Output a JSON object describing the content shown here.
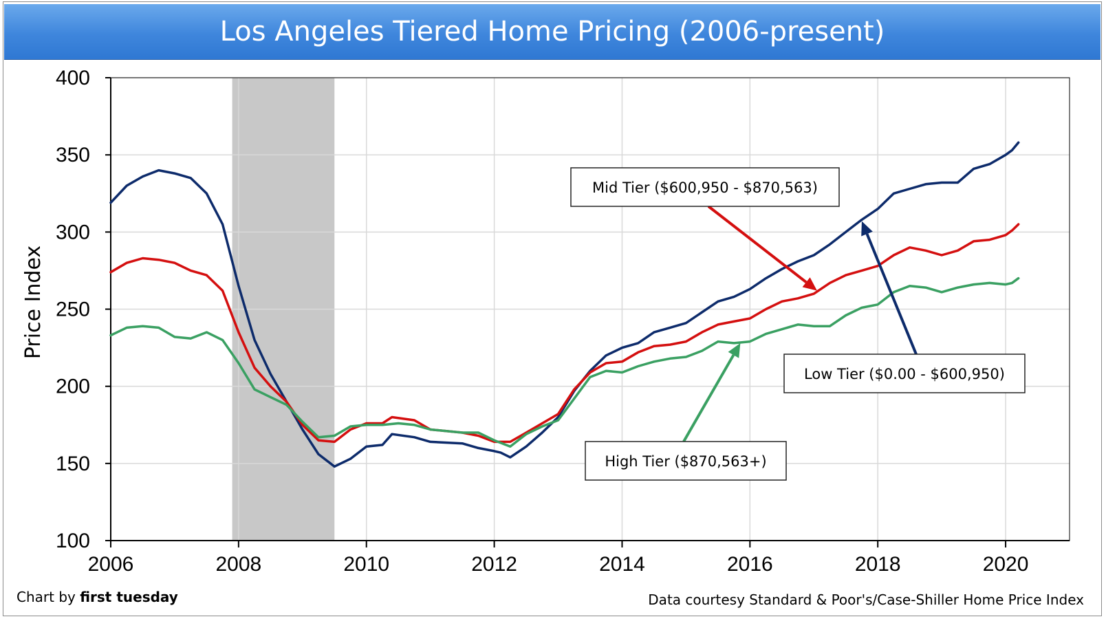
{
  "chart_data": {
    "type": "line",
    "title": "Los Angeles Tiered Home Pricing (2006-present)",
    "ylabel": "Price Index",
    "xlabel": "",
    "xlim": [
      2006,
      2021
    ],
    "ylim": [
      100,
      400
    ],
    "x_ticks": [
      2006,
      2008,
      2010,
      2012,
      2014,
      2016,
      2018,
      2020
    ],
    "y_ticks": [
      100,
      150,
      200,
      250,
      300,
      350,
      400
    ],
    "grid": "horizontal",
    "recession_band": [
      2007.9,
      2009.5
    ],
    "series": [
      {
        "name": "Low Tier ($0.00 - $600,950)",
        "color": "#0d2b6b",
        "points": [
          [
            2006.0,
            319
          ],
          [
            2006.25,
            330
          ],
          [
            2006.5,
            336
          ],
          [
            2006.75,
            340
          ],
          [
            2007.0,
            338
          ],
          [
            2007.25,
            335
          ],
          [
            2007.5,
            325
          ],
          [
            2007.75,
            305
          ],
          [
            2008.0,
            265
          ],
          [
            2008.25,
            230
          ],
          [
            2008.5,
            208
          ],
          [
            2008.75,
            190
          ],
          [
            2009.0,
            172
          ],
          [
            2009.25,
            156
          ],
          [
            2009.5,
            148
          ],
          [
            2009.75,
            153
          ],
          [
            2010.0,
            161
          ],
          [
            2010.25,
            162
          ],
          [
            2010.4,
            169
          ],
          [
            2010.75,
            167
          ],
          [
            2011.0,
            164
          ],
          [
            2011.5,
            163
          ],
          [
            2011.75,
            160
          ],
          [
            2012.0,
            158
          ],
          [
            2012.1,
            157
          ],
          [
            2012.25,
            154
          ],
          [
            2012.5,
            161
          ],
          [
            2012.75,
            170
          ],
          [
            2013.0,
            180
          ],
          [
            2013.25,
            197
          ],
          [
            2013.5,
            210
          ],
          [
            2013.75,
            220
          ],
          [
            2014.0,
            225
          ],
          [
            2014.25,
            228
          ],
          [
            2014.5,
            235
          ],
          [
            2014.75,
            238
          ],
          [
            2015.0,
            241
          ],
          [
            2015.25,
            248
          ],
          [
            2015.5,
            255
          ],
          [
            2015.75,
            258
          ],
          [
            2016.0,
            263
          ],
          [
            2016.25,
            270
          ],
          [
            2016.5,
            276
          ],
          [
            2016.75,
            281
          ],
          [
            2017.0,
            285
          ],
          [
            2017.25,
            292
          ],
          [
            2017.5,
            300
          ],
          [
            2017.75,
            308
          ],
          [
            2018.0,
            315
          ],
          [
            2018.25,
            325
          ],
          [
            2018.5,
            328
          ],
          [
            2018.75,
            331
          ],
          [
            2019.0,
            332
          ],
          [
            2019.25,
            332
          ],
          [
            2019.5,
            341
          ],
          [
            2019.75,
            344
          ],
          [
            2020.0,
            350
          ],
          [
            2020.1,
            353
          ],
          [
            2020.2,
            358
          ]
        ]
      },
      {
        "name": "Mid Tier ($600,950 - $870,563)",
        "color": "#d40f0f",
        "points": [
          [
            2006.0,
            274
          ],
          [
            2006.25,
            280
          ],
          [
            2006.5,
            283
          ],
          [
            2006.75,
            282
          ],
          [
            2007.0,
            280
          ],
          [
            2007.25,
            275
          ],
          [
            2007.5,
            272
          ],
          [
            2007.75,
            262
          ],
          [
            2008.0,
            235
          ],
          [
            2008.25,
            212
          ],
          [
            2008.5,
            200
          ],
          [
            2008.75,
            190
          ],
          [
            2009.0,
            175
          ],
          [
            2009.25,
            165
          ],
          [
            2009.5,
            164
          ],
          [
            2009.75,
            172
          ],
          [
            2010.0,
            176
          ],
          [
            2010.25,
            176
          ],
          [
            2010.4,
            180
          ],
          [
            2010.75,
            178
          ],
          [
            2011.0,
            172
          ],
          [
            2011.5,
            170
          ],
          [
            2011.75,
            168
          ],
          [
            2012.0,
            164
          ],
          [
            2012.25,
            164
          ],
          [
            2012.5,
            170
          ],
          [
            2012.75,
            176
          ],
          [
            2013.0,
            182
          ],
          [
            2013.25,
            198
          ],
          [
            2013.5,
            209
          ],
          [
            2013.75,
            215
          ],
          [
            2014.0,
            216
          ],
          [
            2014.25,
            222
          ],
          [
            2014.5,
            226
          ],
          [
            2014.75,
            227
          ],
          [
            2015.0,
            229
          ],
          [
            2015.25,
            235
          ],
          [
            2015.5,
            240
          ],
          [
            2015.75,
            242
          ],
          [
            2016.0,
            244
          ],
          [
            2016.25,
            250
          ],
          [
            2016.5,
            255
          ],
          [
            2016.75,
            257
          ],
          [
            2017.0,
            260
          ],
          [
            2017.25,
            267
          ],
          [
            2017.5,
            272
          ],
          [
            2017.75,
            275
          ],
          [
            2018.0,
            278
          ],
          [
            2018.25,
            285
          ],
          [
            2018.5,
            290
          ],
          [
            2018.75,
            288
          ],
          [
            2019.0,
            285
          ],
          [
            2019.25,
            288
          ],
          [
            2019.5,
            294
          ],
          [
            2019.75,
            295
          ],
          [
            2020.0,
            298
          ],
          [
            2020.1,
            301
          ],
          [
            2020.2,
            305
          ]
        ]
      },
      {
        "name": "High Tier ($870,563+)",
        "color": "#3aa062",
        "points": [
          [
            2006.0,
            233
          ],
          [
            2006.25,
            238
          ],
          [
            2006.5,
            239
          ],
          [
            2006.75,
            238
          ],
          [
            2007.0,
            232
          ],
          [
            2007.25,
            231
          ],
          [
            2007.5,
            235
          ],
          [
            2007.75,
            230
          ],
          [
            2008.0,
            215
          ],
          [
            2008.25,
            198
          ],
          [
            2008.5,
            193
          ],
          [
            2008.75,
            188
          ],
          [
            2009.0,
            177
          ],
          [
            2009.25,
            167
          ],
          [
            2009.5,
            168
          ],
          [
            2009.75,
            174
          ],
          [
            2010.0,
            175
          ],
          [
            2010.25,
            175
          ],
          [
            2010.5,
            176
          ],
          [
            2010.75,
            175
          ],
          [
            2011.0,
            172
          ],
          [
            2011.5,
            170
          ],
          [
            2011.75,
            170
          ],
          [
            2012.0,
            165
          ],
          [
            2012.25,
            161
          ],
          [
            2012.5,
            169
          ],
          [
            2012.75,
            174
          ],
          [
            2013.0,
            178
          ],
          [
            2013.25,
            192
          ],
          [
            2013.5,
            206
          ],
          [
            2013.75,
            210
          ],
          [
            2014.0,
            209
          ],
          [
            2014.25,
            213
          ],
          [
            2014.5,
            216
          ],
          [
            2014.75,
            218
          ],
          [
            2015.0,
            219
          ],
          [
            2015.25,
            223
          ],
          [
            2015.5,
            229
          ],
          [
            2015.75,
            228
          ],
          [
            2016.0,
            229
          ],
          [
            2016.25,
            234
          ],
          [
            2016.5,
            237
          ],
          [
            2016.75,
            240
          ],
          [
            2017.0,
            239
          ],
          [
            2017.25,
            239
          ],
          [
            2017.5,
            246
          ],
          [
            2017.75,
            251
          ],
          [
            2018.0,
            253
          ],
          [
            2018.25,
            261
          ],
          [
            2018.5,
            265
          ],
          [
            2018.75,
            264
          ],
          [
            2019.0,
            261
          ],
          [
            2019.25,
            264
          ],
          [
            2019.5,
            266
          ],
          [
            2019.75,
            267
          ],
          [
            2020.0,
            266
          ],
          [
            2020.1,
            267
          ],
          [
            2020.2,
            270
          ]
        ]
      }
    ],
    "annotations": [
      {
        "label": "Mid Tier ($600,950 - $870,563)",
        "series": 1,
        "arrow_to": [
          2017.05,
          262
        ]
      },
      {
        "label": "Low Tier ($0.00 - $600,950)",
        "series": 0,
        "arrow_to": [
          2017.75,
          307
        ]
      },
      {
        "label": "High Tier ($870,563+)",
        "series": 2,
        "arrow_to": [
          2015.85,
          228
        ]
      }
    ]
  },
  "footer": {
    "credit_prefix": "Chart by ",
    "credit_name": "first tuesday",
    "source": "Data courtesy Standard & Poor's/Case-Shiller Home Price Index"
  }
}
